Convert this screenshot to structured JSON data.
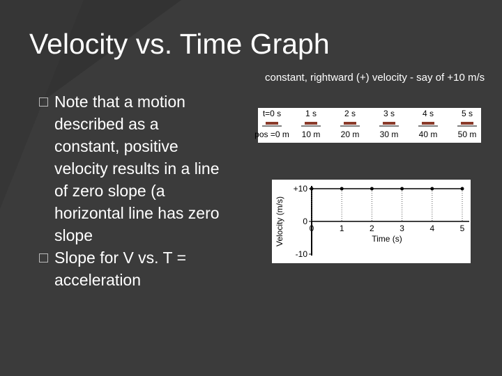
{
  "slide": {
    "title": "Velocity vs. Time Graph",
    "bullets": [
      "Note that a motion described as a constant, positive velocity results in a line of zero slope (a horizontal line has zero slope",
      "Slope for V vs. T = acceleration"
    ],
    "caption": "constant, rightward (+) velocity - say of +10 m/s"
  },
  "motion": {
    "times": [
      "t=0 s",
      "1 s",
      "2 s",
      "3 s",
      "4 s",
      "5 s"
    ],
    "positions": [
      "pos =0 m",
      "10 m",
      "20 m",
      "30 m",
      "40 m",
      "50 m"
    ]
  },
  "chart_data": {
    "type": "line",
    "x_label": "Time (s)",
    "y_label": "Velocity (m/s)",
    "x": [
      0,
      1,
      2,
      3,
      4,
      5
    ],
    "series": [
      {
        "color": "#000000",
        "values": [
          10,
          10,
          10,
          10,
          10,
          10
        ]
      }
    ],
    "xlim": [
      0,
      5
    ],
    "xticks": [
      0,
      1,
      2,
      3,
      4,
      5
    ],
    "ylim": [
      -10,
      10
    ],
    "yticks": [
      {
        "value": 10,
        "label": "+10"
      },
      0,
      -10
    ]
  }
}
